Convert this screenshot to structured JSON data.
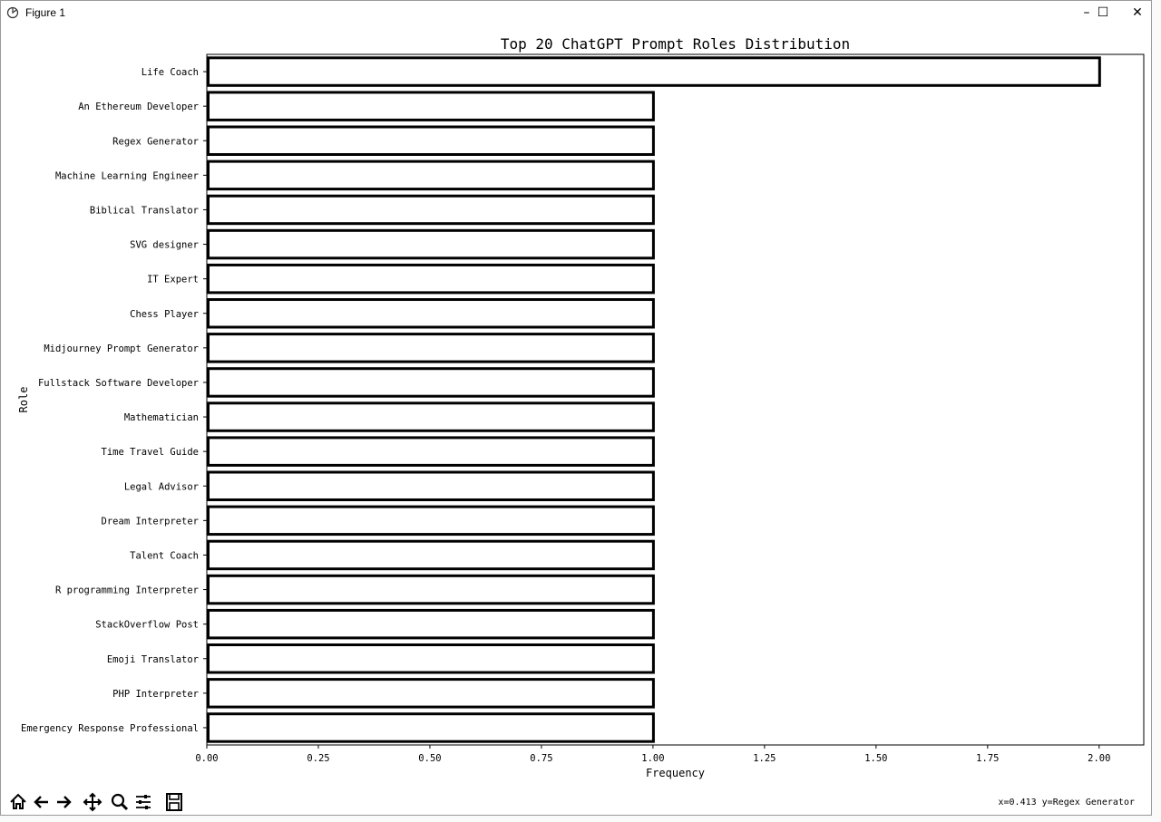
{
  "window": {
    "title": "Figure 1",
    "minimize_glyph": "–",
    "maximize_glyph": "☐",
    "close_glyph": "✕"
  },
  "toolbar": {
    "buttons": [
      {
        "name": "home-icon"
      },
      {
        "name": "back-icon"
      },
      {
        "name": "forward-icon"
      },
      {
        "name": "pan-icon"
      },
      {
        "name": "zoom-icon"
      },
      {
        "name": "configure-subplots-icon"
      },
      {
        "name": "save-icon"
      }
    ],
    "coords": "x=0.413 y=Regex Generator"
  },
  "chart_data": {
    "type": "bar",
    "orientation": "horizontal",
    "title": "Top 20 ChatGPT Prompt Roles Distribution",
    "xlabel": "Frequency",
    "ylabel": "Role",
    "xlim": [
      0,
      2.1
    ],
    "xticks": [
      "0.00",
      "0.25",
      "0.50",
      "0.75",
      "1.00",
      "1.25",
      "1.50",
      "1.75",
      "2.00"
    ],
    "categories": [
      "Life Coach",
      "An Ethereum Developer",
      "Regex Generator",
      "Machine Learning Engineer",
      "Biblical Translator",
      "SVG designer",
      "IT Expert",
      "Chess Player",
      "Midjourney Prompt Generator",
      "Fullstack Software Developer",
      "Mathematician",
      "Time Travel Guide",
      "Legal Advisor",
      "Dream Interpreter",
      "Talent Coach",
      "R programming Interpreter",
      "StackOverflow Post",
      "Emoji Translator",
      "PHP Interpreter",
      "Emergency Response Professional"
    ],
    "values": [
      2,
      1,
      1,
      1,
      1,
      1,
      1,
      1,
      1,
      1,
      1,
      1,
      1,
      1,
      1,
      1,
      1,
      1,
      1,
      1
    ],
    "bar_fill": "#ffffff",
    "bar_edge": "#000000",
    "grid": false
  }
}
